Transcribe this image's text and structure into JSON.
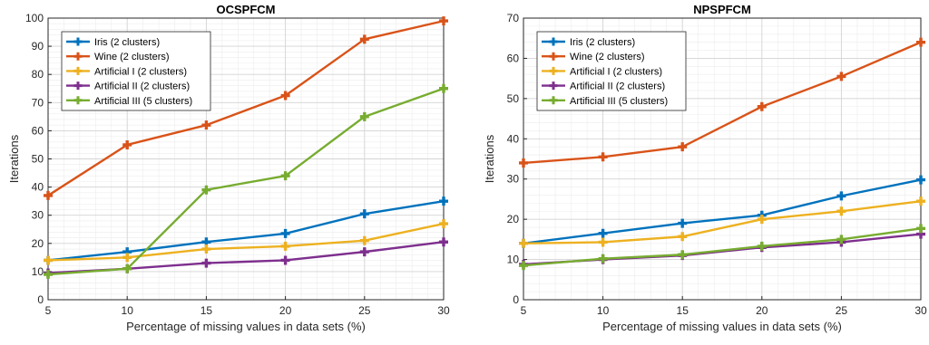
{
  "chart_data": [
    {
      "type": "line",
      "title": "OCSPFCM",
      "xlabel": "Percentage of missing values in data sets (%)",
      "ylabel": "Iterations",
      "x": [
        5,
        10,
        15,
        20,
        25,
        30
      ],
      "xticks": [
        "5",
        "10",
        "15",
        "20",
        "25",
        "30"
      ],
      "ylim": [
        0,
        100
      ],
      "yticks": [
        "0",
        "10",
        "20",
        "30",
        "40",
        "50",
        "60",
        "70",
        "80",
        "90",
        "100"
      ],
      "grid": true,
      "legend_position": "top-left",
      "series": [
        {
          "name": "Iris (2 clusters)",
          "color": "#0072BD",
          "values": [
            14,
            17,
            20.5,
            23.5,
            30.5,
            35
          ]
        },
        {
          "name": "Wine (2 clusters)",
          "color": "#D95319",
          "values": [
            37,
            55,
            62,
            72.5,
            92.5,
            99
          ]
        },
        {
          "name": "Artificial I (2 clusters)",
          "color": "#EDB120",
          "values": [
            14,
            15,
            18,
            19,
            21,
            27
          ]
        },
        {
          "name": "Artificial II (2 clusters)",
          "color": "#7E2F8E",
          "values": [
            9.5,
            11,
            13,
            14,
            17,
            20.5
          ]
        },
        {
          "name": "Artificial III (5 clusters)",
          "color": "#77AC30",
          "values": [
            9,
            11,
            39,
            44,
            65,
            75
          ]
        }
      ]
    },
    {
      "type": "line",
      "title": "NPSPFCM",
      "xlabel": "Percentage of missing values in data sets (%)",
      "ylabel": "Iterations",
      "x": [
        5,
        10,
        15,
        20,
        25,
        30
      ],
      "xticks": [
        "5",
        "10",
        "15",
        "20",
        "25",
        "30"
      ],
      "ylim": [
        0,
        70
      ],
      "yticks": [
        "0",
        "10",
        "20",
        "30",
        "40",
        "50",
        "60",
        "70"
      ],
      "grid": true,
      "legend_position": "top-left",
      "series": [
        {
          "name": "Iris (2 clusters)",
          "color": "#0072BD",
          "values": [
            14,
            16.5,
            19,
            21,
            25.8,
            29.8
          ]
        },
        {
          "name": "Wine (2 clusters)",
          "color": "#D95319",
          "values": [
            34,
            35.5,
            38,
            48,
            55.5,
            64
          ]
        },
        {
          "name": "Artificial I (2 clusters)",
          "color": "#EDB120",
          "values": [
            14,
            14.3,
            15.7,
            20,
            22,
            24.5
          ]
        },
        {
          "name": "Artificial II (2 clusters)",
          "color": "#7E2F8E",
          "values": [
            8.8,
            10,
            11,
            13,
            14.3,
            16.3
          ]
        },
        {
          "name": "Artificial III (5 clusters)",
          "color": "#77AC30",
          "values": [
            8.5,
            10.2,
            11.2,
            13.3,
            15,
            17.7
          ]
        }
      ]
    }
  ]
}
